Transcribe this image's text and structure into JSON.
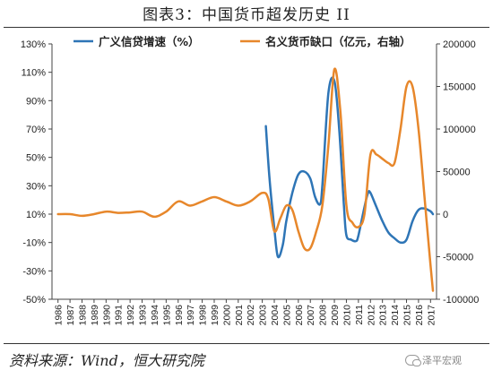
{
  "title": "图表3：中国货币超发历史 II",
  "source": "资料来源：Wind，恒大研究院",
  "watermark": "泽平宏观",
  "watermark_icon": "wechat-icon",
  "chart_data": {
    "type": "line",
    "x": [
      "1986",
      "1987",
      "1988",
      "1989",
      "1990",
      "1991",
      "1992",
      "1993",
      "1994",
      "1995",
      "1996",
      "1997",
      "1998",
      "1999",
      "2000",
      "2001",
      "2002",
      "2003",
      "2004",
      "2005",
      "2006",
      "2007",
      "2008",
      "2009",
      "2010",
      "2011",
      "2012",
      "2013",
      "2014",
      "2015",
      "2016",
      "2017"
    ],
    "y_left": {
      "ticks": [
        "130%",
        "110%",
        "90%",
        "70%",
        "50%",
        "30%",
        "10%",
        "-10%",
        "-30%",
        "-50%"
      ],
      "min": -50,
      "max": 130
    },
    "y_right": {
      "ticks": [
        "200000",
        "150000",
        "100000",
        "50000",
        "0",
        "-50000",
        "-100000"
      ],
      "min": -100000,
      "max": 200000
    },
    "legend_position": "top",
    "grid": false,
    "series": [
      {
        "name": "广义信贷增速（%）",
        "axis": "left",
        "color": "#2E75B6",
        "x": [
          2003.3,
          2003.6,
          2004,
          2004.3,
          2004.7,
          2005,
          2005.5,
          2006,
          2006.5,
          2007,
          2007.4,
          2007.8,
          2008,
          2008.5,
          2009,
          2009.4,
          2009.8,
          2010,
          2010.4,
          2010.8,
          2011,
          2011.5,
          2011.8,
          2012,
          2012.5,
          2013,
          2013.5,
          2014,
          2014.5,
          2015,
          2015.5,
          2016,
          2016.5,
          2017,
          2017.2
        ],
        "y": [
          72,
          35,
          0,
          -20,
          -12,
          5,
          25,
          38,
          40,
          35,
          22,
          17,
          30,
          95,
          104,
          70,
          15,
          -5,
          -8,
          -9,
          -5,
          15,
          25,
          25,
          15,
          5,
          -3,
          -7,
          -10,
          -8,
          5,
          13,
          14,
          12,
          10
        ]
      },
      {
        "name": "名义货币缺口（亿元，右轴）",
        "axis": "right",
        "color": "#E7872B",
        "x": [
          1986,
          1987,
          1988,
          1989,
          1990,
          1991,
          1992,
          1993,
          1994,
          1995,
          1996,
          1997,
          1998,
          1999,
          2000,
          2001,
          2002,
          2003,
          2003.5,
          2004,
          2004.5,
          2005,
          2005.5,
          2006,
          2006.5,
          2007,
          2007.5,
          2008,
          2008.5,
          2009,
          2009.5,
          2010,
          2010.5,
          2011,
          2011.5,
          2012,
          2012.5,
          2013,
          2013.5,
          2014,
          2014.5,
          2015,
          2015.5,
          2016,
          2016.5,
          2017,
          2017.2
        ],
        "y": [
          0,
          0,
          -2000,
          0,
          3000,
          1500,
          2000,
          3000,
          -3000,
          3000,
          15000,
          10000,
          15000,
          20000,
          15000,
          10000,
          15000,
          25000,
          18000,
          -20000,
          -5000,
          10000,
          5000,
          -20000,
          -40000,
          -40000,
          -20000,
          10000,
          80000,
          170000,
          120000,
          10000,
          -10000,
          -15000,
          0,
          70000,
          70000,
          65000,
          60000,
          60000,
          100000,
          150000,
          150000,
          100000,
          20000,
          -60000,
          -90000
        ]
      }
    ]
  }
}
